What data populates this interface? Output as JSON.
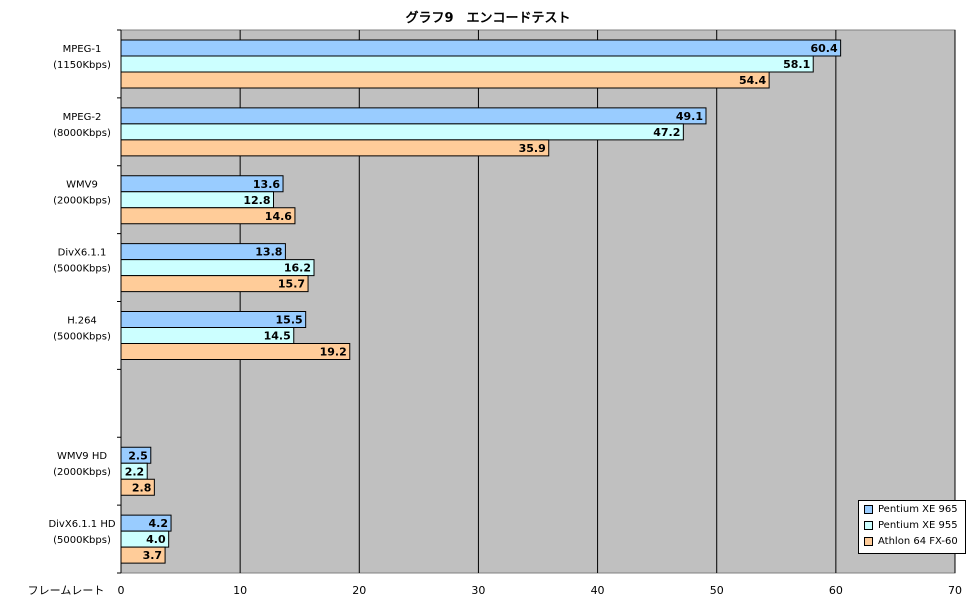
{
  "chart_data": {
    "type": "bar",
    "orientation": "horizontal",
    "title": "グラフ9　エンコードテスト",
    "xlabel": "フレームレート",
    "xlim": [
      0,
      70
    ],
    "xticks": [
      "0",
      "10",
      "20",
      "30",
      "40",
      "50",
      "60",
      "70"
    ],
    "grid": true,
    "legend_position": "bottom-right",
    "categories": [
      [
        "MPEG-1",
        "(1150Kbps)"
      ],
      [
        "MPEG-2",
        "(8000Kbps)"
      ],
      [
        "WMV9",
        "(2000Kbps)"
      ],
      [
        "DivX6.1.1",
        "(5000Kbps)"
      ],
      [
        "H.264",
        "(5000Kbps)"
      ],
      [
        "",
        ""
      ],
      [
        "WMV9 HD",
        "(2000Kbps)"
      ],
      [
        "DivX6.1.1 HD",
        "(5000Kbps)"
      ]
    ],
    "series": [
      {
        "name": "Pentium XE 965",
        "color": "#99ccff",
        "values": [
          60.4,
          49.1,
          13.6,
          13.8,
          15.5,
          null,
          2.5,
          4.2
        ],
        "labels": [
          "60.4",
          "49.1",
          "13.6",
          "13.8",
          "15.5",
          "",
          "2.5",
          "4.2"
        ]
      },
      {
        "name": "Pentium XE 955",
        "color": "#ccffff",
        "values": [
          58.1,
          47.2,
          12.8,
          16.2,
          14.5,
          null,
          2.2,
          4.0
        ],
        "labels": [
          "58.1",
          "47.2",
          "12.8",
          "16.2",
          "14.5",
          "",
          "2.2",
          "4.0"
        ]
      },
      {
        "name": "Athlon 64 FX-60",
        "color": "#ffcc99",
        "values": [
          54.4,
          35.9,
          14.6,
          15.7,
          19.2,
          null,
          2.8,
          3.7
        ],
        "labels": [
          "54.4",
          "35.9",
          "14.6",
          "15.7",
          "19.2",
          "",
          "2.8",
          "3.7"
        ]
      }
    ],
    "colors": {
      "plot_background": "#c0c0c0",
      "gridline": "#000000"
    }
  }
}
